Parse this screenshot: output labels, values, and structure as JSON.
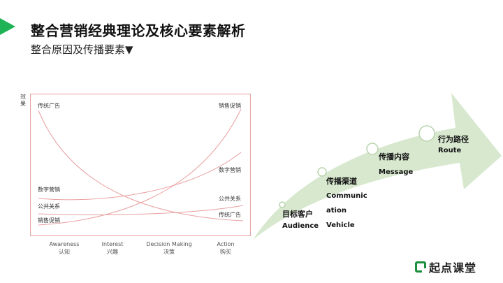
{
  "header": {
    "title": "整合营销经典理论及核心要素解析",
    "subtitle": "整合原因及传播要素▼"
  },
  "chart": {
    "y_axis_label": "效果",
    "left_labels": [
      "传统广告",
      "数字营销",
      "公共关系",
      "销售促销"
    ],
    "right_labels": [
      "销售促销",
      "数字营销",
      "公共关系",
      "传统广告"
    ],
    "stages": [
      {
        "en": "Awareness",
        "cn": "认知"
      },
      {
        "en": "Interest",
        "cn": "兴趣"
      },
      {
        "en": "Decision Making",
        "cn": "决策"
      },
      {
        "en": "Action",
        "cn": "购买"
      }
    ],
    "colors": {
      "frame": "#e8a5a5",
      "curve": "#e9a0a0"
    }
  },
  "flow": {
    "steps": [
      {
        "cn": "目标客户",
        "en": [
          "Audience"
        ]
      },
      {
        "cn": "传播渠道",
        "en": [
          "Communic",
          "ation",
          "Vehicle"
        ]
      },
      {
        "cn": "传播内容",
        "en": [
          "Message"
        ]
      },
      {
        "cn": "行为路径",
        "en": [
          "Route"
        ]
      }
    ],
    "arrow_color": "#d7e8cf",
    "dot_border": "#b9d3ad"
  },
  "brand": {
    "name": "起点课堂",
    "accent": "#1fb356"
  }
}
